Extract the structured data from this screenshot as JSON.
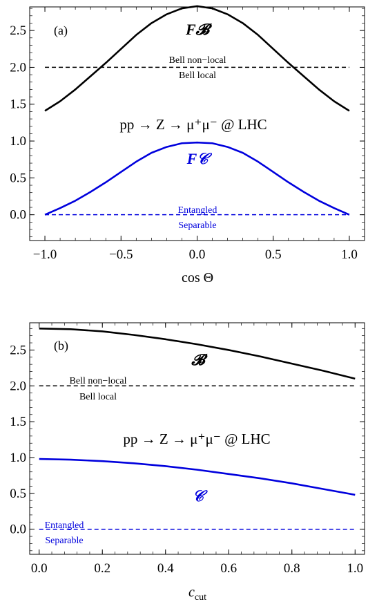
{
  "chart_data": [
    {
      "type": "line",
      "panel_label": "(a)",
      "xlabel": "cos Θ",
      "ylabel": "",
      "xlim": [
        -1.1,
        1.1
      ],
      "ylim": [
        -0.35,
        2.82
      ],
      "x_ticks": [
        -1.0,
        -0.5,
        0.0,
        0.5,
        1.0
      ],
      "x_tick_labels": [
        "−1.0",
        "−0.5",
        "0.0",
        "0.5",
        "1.0"
      ],
      "y_ticks": [
        0.0,
        0.5,
        1.0,
        1.5,
        2.0,
        2.5
      ],
      "y_tick_labels": [
        "0.0",
        "0.5",
        "1.0",
        "1.5",
        "2.0",
        "2.5"
      ],
      "grid": false,
      "process_label": "pp → Z → μ⁺μ⁻ @ LHC",
      "series": [
        {
          "name": "F𝓑",
          "color": "#000000",
          "x": [
            -1.0,
            -0.9,
            -0.8,
            -0.7,
            -0.6,
            -0.5,
            -0.4,
            -0.3,
            -0.2,
            -0.1,
            0.0,
            0.1,
            0.2,
            0.3,
            0.4,
            0.5,
            0.6,
            0.7,
            0.8,
            0.9,
            1.0
          ],
          "y": [
            1.41,
            1.54,
            1.7,
            1.88,
            2.06,
            2.25,
            2.44,
            2.6,
            2.72,
            2.8,
            2.83,
            2.8,
            2.72,
            2.6,
            2.44,
            2.25,
            2.06,
            1.88,
            1.7,
            1.54,
            1.41
          ]
        },
        {
          "name": "F𝒞",
          "color": "#0000dd",
          "x": [
            -1.0,
            -0.9,
            -0.8,
            -0.7,
            -0.6,
            -0.5,
            -0.4,
            -0.3,
            -0.2,
            -0.1,
            0.0,
            0.1,
            0.2,
            0.3,
            0.4,
            0.5,
            0.6,
            0.7,
            0.8,
            0.9,
            1.0
          ],
          "y": [
            0.0,
            0.09,
            0.19,
            0.31,
            0.44,
            0.58,
            0.72,
            0.84,
            0.92,
            0.97,
            0.98,
            0.97,
            0.92,
            0.84,
            0.72,
            0.58,
            0.44,
            0.31,
            0.19,
            0.09,
            0.0
          ]
        }
      ],
      "thresholds": [
        {
          "y": 2.0,
          "color": "#000000",
          "label_above": "Bell non−local",
          "label_below": "Bell local"
        },
        {
          "y": 0.0,
          "color": "#0000dd",
          "label_above": "Entangled",
          "label_below": "Separable"
        }
      ]
    },
    {
      "type": "line",
      "panel_label": "(b)",
      "xlabel": "c_cut",
      "ylabel": "",
      "xlim": [
        -0.03,
        1.03
      ],
      "ylim": [
        -0.35,
        2.88
      ],
      "x_ticks": [
        0.0,
        0.2,
        0.4,
        0.6,
        0.8,
        1.0
      ],
      "x_tick_labels": [
        "0.0",
        "0.2",
        "0.4",
        "0.6",
        "0.8",
        "1.0"
      ],
      "y_ticks": [
        0.0,
        0.5,
        1.0,
        1.5,
        2.0,
        2.5
      ],
      "y_tick_labels": [
        "0.0",
        "0.5",
        "1.0",
        "1.5",
        "2.0",
        "2.5"
      ],
      "grid": false,
      "process_label": "pp → Z → μ⁺μ⁻ @ LHC",
      "series": [
        {
          "name": "𝓑",
          "color": "#000000",
          "x": [
            0.0,
            0.1,
            0.2,
            0.3,
            0.4,
            0.5,
            0.6,
            0.7,
            0.8,
            0.9,
            1.0
          ],
          "y": [
            2.8,
            2.79,
            2.76,
            2.71,
            2.65,
            2.58,
            2.5,
            2.41,
            2.31,
            2.21,
            2.1
          ]
        },
        {
          "name": "𝒞",
          "color": "#0000dd",
          "x": [
            0.0,
            0.1,
            0.2,
            0.3,
            0.4,
            0.5,
            0.6,
            0.7,
            0.8,
            0.9,
            1.0
          ],
          "y": [
            0.98,
            0.97,
            0.95,
            0.92,
            0.88,
            0.83,
            0.77,
            0.71,
            0.64,
            0.56,
            0.48
          ]
        }
      ],
      "thresholds": [
        {
          "y": 2.0,
          "color": "#000000",
          "label_above": "Bell non−local",
          "label_below": "Bell local"
        },
        {
          "y": 0.0,
          "color": "#0000dd",
          "label_above": "Entangled",
          "label_below": "Separable"
        }
      ]
    }
  ]
}
